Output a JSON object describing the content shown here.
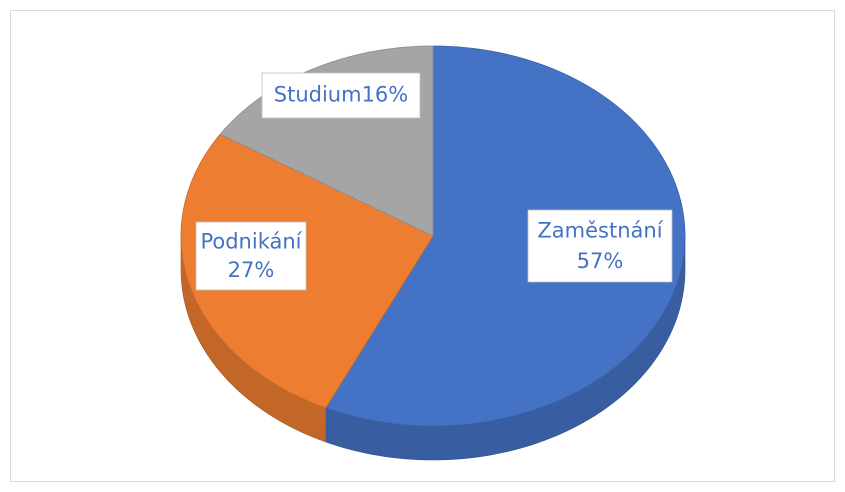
{
  "chart_data": {
    "type": "pie",
    "categories": [
      "Zaměstnání",
      "Podnikání",
      "Studium"
    ],
    "values": [
      57,
      27,
      16
    ],
    "value_labels": [
      "57%",
      "27%",
      "16%"
    ],
    "colors": [
      "#4472c4",
      "#ed7d31",
      "#a5a5a5"
    ]
  }
}
